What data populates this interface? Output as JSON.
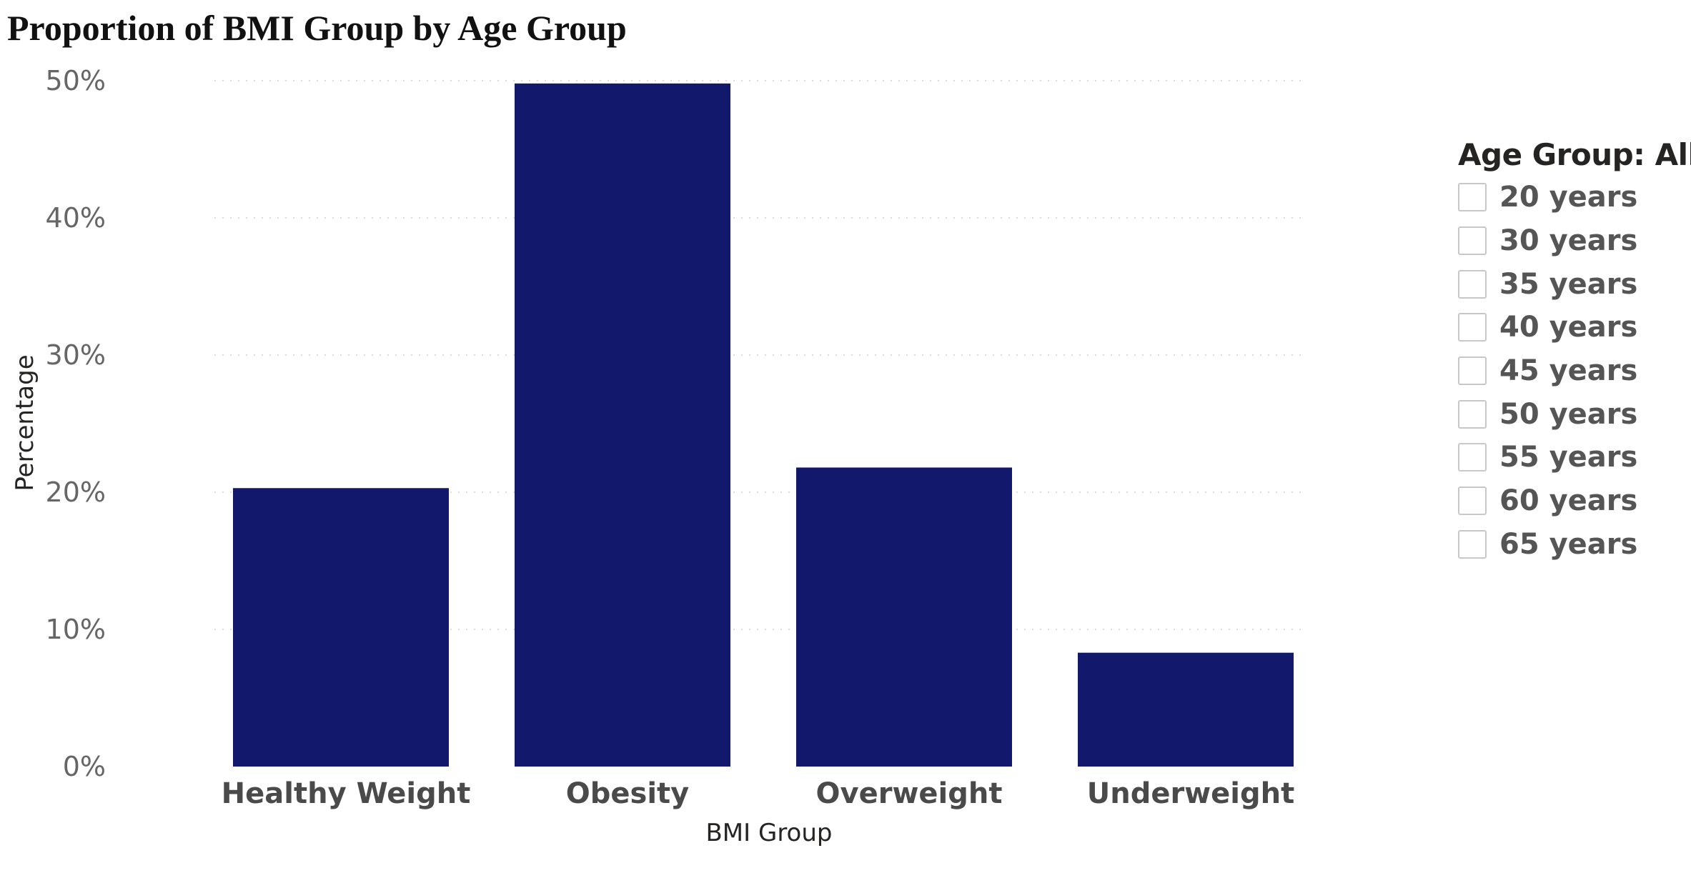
{
  "chart_data": {
    "type": "bar",
    "title": "Proportion of BMI Group by Age Group",
    "xlabel": "BMI Group",
    "ylabel": "Percentage",
    "categories": [
      "Healthy Weight",
      "Obesity",
      "Overweight",
      "Underweight"
    ],
    "values": [
      20.3,
      49.8,
      21.8,
      8.3
    ],
    "ylim": [
      0,
      50
    ],
    "yticks": [
      0,
      10,
      20,
      30,
      40,
      50
    ],
    "ytick_labels": [
      "0%",
      "10%",
      "20%",
      "30%",
      "40%",
      "50%"
    ],
    "grid": true,
    "bar_color": "#12186B",
    "legend_position": "right"
  },
  "slicer": {
    "title": "Age Group: All",
    "items": [
      "20 years",
      "30 years",
      "35 years",
      "40 years",
      "45 years",
      "50 years",
      "55 years",
      "60 years",
      "65 years"
    ]
  }
}
